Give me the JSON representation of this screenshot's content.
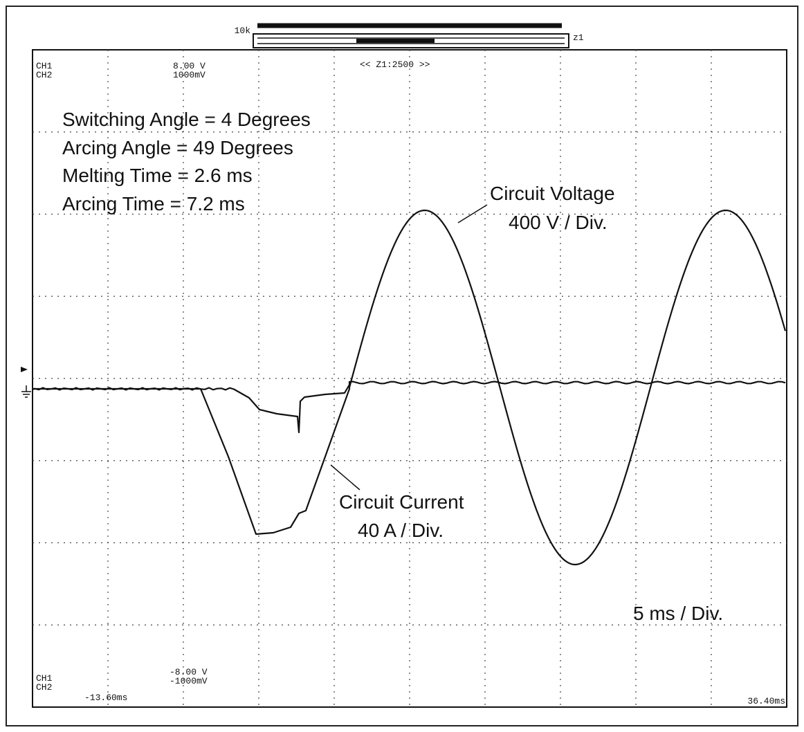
{
  "header": {
    "zoom_left": "10k",
    "zoom_right": "z1",
    "zoom_info": "<< Z1:2500 >>"
  },
  "top_left": {
    "ch1": "CH1",
    "ch2": "CH2",
    "ch1_scale": "8.00 V",
    "ch2_scale": "1000mV"
  },
  "bottom_left": {
    "ch1": "CH1",
    "ch2": "CH2",
    "ch1_scale": "-8.00 V",
    "ch2_scale": "-1000mV",
    "time_start": "-13.60ms"
  },
  "time_end": "36.40ms",
  "annotations": {
    "lines": [
      "Switching Angle = 4 Degrees",
      "Arcing Angle = 49 Degrees",
      "Melting Time = 2.6 ms",
      "Arcing Time = 7.2 ms"
    ],
    "voltage_label": "Circuit Voltage",
    "voltage_scale": "400 V / Div.",
    "current_label": "Circuit Current",
    "current_scale": "40 A / Div.",
    "time_scale": "5 ms / Div."
  }
}
